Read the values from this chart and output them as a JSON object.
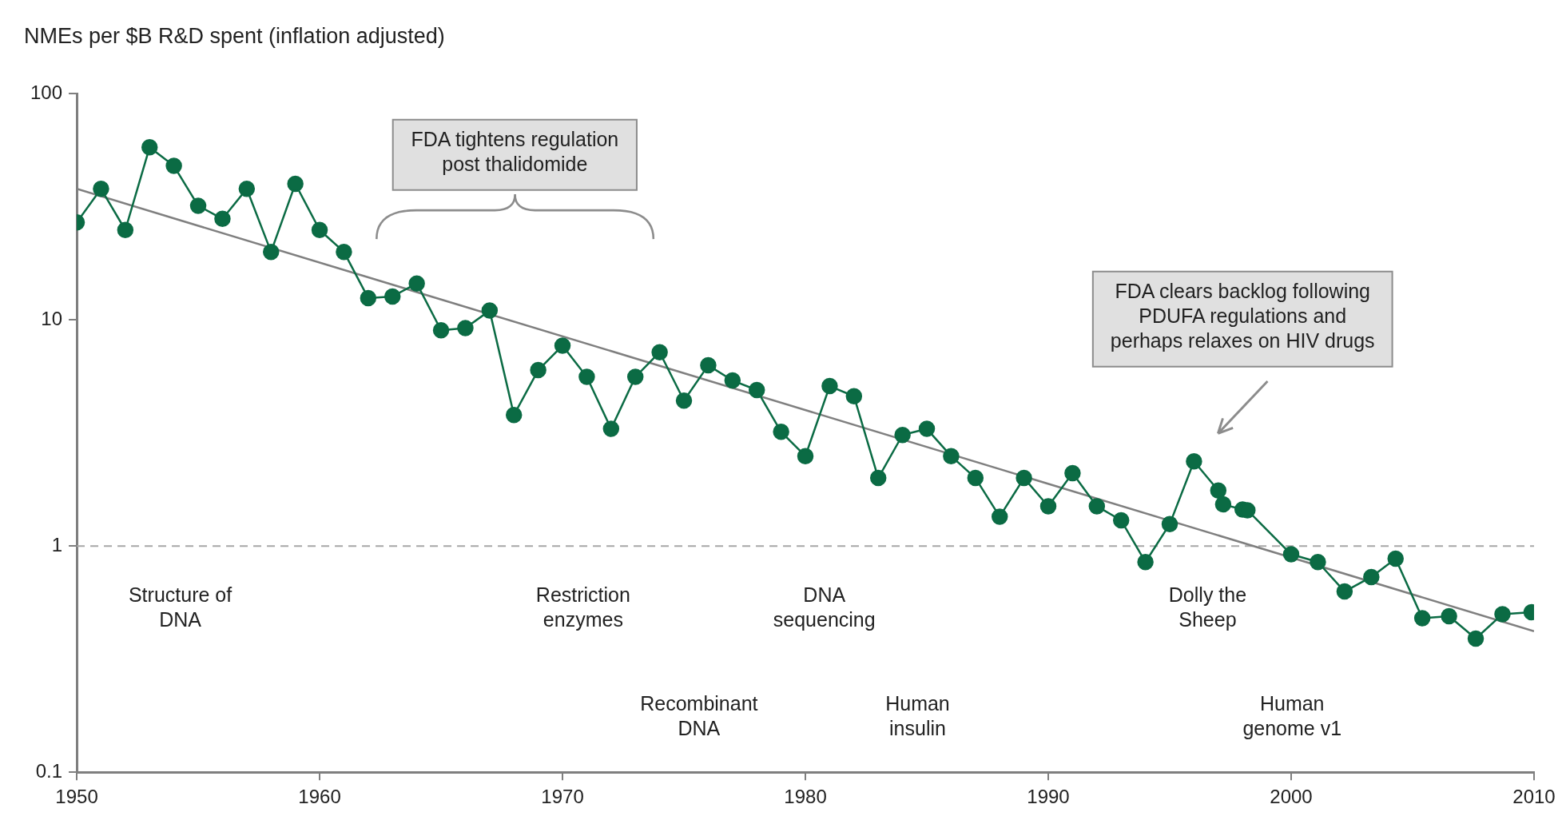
{
  "chart_data": {
    "type": "line",
    "title": "NMEs per $B R&D spent (inflation adjusted)",
    "x": [
      1950,
      1951,
      1952,
      1953,
      1954,
      1955,
      1956,
      1957,
      1958,
      1959,
      1960,
      1961,
      1962,
      1963,
      1964,
      1965,
      1966,
      1967,
      1968,
      1969,
      1970,
      1971,
      1972,
      1973,
      1974,
      1975,
      1976,
      1977,
      1978,
      1979,
      1980,
      1981,
      1982,
      1983,
      1984,
      1985,
      1986,
      1987,
      1988,
      1989,
      1990,
      1991,
      1992,
      1993,
      1994,
      1995,
      1996,
      1997,
      1997.2,
      1998,
      1998.2,
      2000,
      2001.1,
      2002.2,
      2003.3,
      2004.3,
      2005.4,
      2006.5,
      2007.6,
      2008.7,
      2009.9
    ],
    "series": [
      {
        "color": "#0b6b44",
        "values": [
          27,
          38,
          25,
          58,
          48,
          32,
          28,
          38,
          20,
          40,
          25,
          20,
          12.5,
          12.7,
          14.5,
          9,
          9.2,
          11,
          3.8,
          6,
          7.7,
          5.6,
          3.3,
          5.6,
          7.2,
          4.4,
          6.3,
          5.4,
          4.9,
          3.2,
          2.5,
          5.1,
          4.6,
          2.0,
          3.1,
          3.3,
          2.5,
          2.0,
          1.35,
          2.0,
          1.5,
          2.1,
          1.5,
          1.3,
          0.85,
          1.25,
          2.37,
          1.76,
          1.53,
          1.45,
          1.44,
          0.92,
          0.85,
          0.63,
          0.73,
          0.88,
          0.48,
          0.49,
          0.39,
          0.5,
          0.51
        ]
      },
      {
        "type": "line",
        "color": "#7f7f7f",
        "marker": "none",
        "x": [
          1950,
          2010
        ],
        "values": [
          38,
          0.42
        ]
      }
    ],
    "xlim": [
      1950,
      2010
    ],
    "xticks": [
      1950,
      1960,
      1970,
      1980,
      1990,
      2000,
      2010
    ],
    "ylim": [
      0.1,
      100
    ],
    "yticks": [
      0.1,
      1,
      10,
      100
    ],
    "log": true,
    "grid": false,
    "legend": false,
    "marker": "circle",
    "line_style": "solid",
    "ref_lines": [
      {
        "axis": "y",
        "value": 1,
        "color": "#a6a6a6",
        "line_style": "dashed"
      }
    ],
    "annotations": [
      "Structure of\nDNA",
      "Restriction\nenzymes",
      "DNA\nsequencing",
      "Dolly the\nSheep",
      "Recombinant\nDNA",
      "Human\ninsulin",
      "Human\ngenome v1",
      "FDA tightens regulation\npost thalidomide",
      "FDA clears backlog following\nPDUFA regulations and\nperhaps relaxes on HIV drugs"
    ]
  }
}
